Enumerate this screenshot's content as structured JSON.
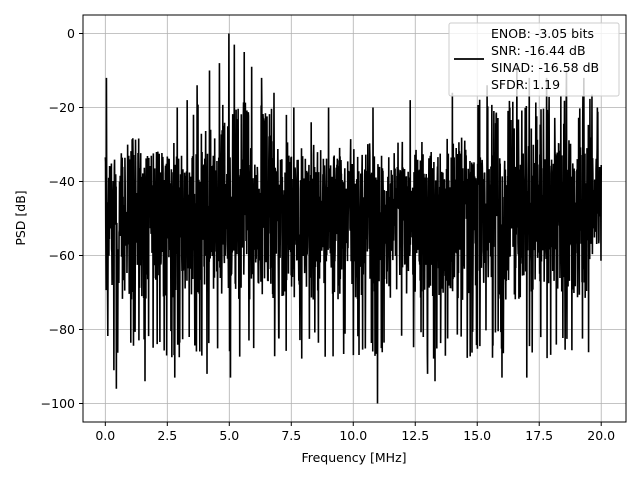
{
  "chart_data": {
    "type": "line",
    "title": "",
    "xlabel": "Frequency [MHz]",
    "ylabel": "PSD [dB]",
    "xlim": [
      -0.9,
      21.0
    ],
    "ylim": [
      -105,
      5
    ],
    "x_ticks": [
      0.0,
      2.5,
      5.0,
      7.5,
      10.0,
      12.5,
      15.0,
      17.5,
      20.0
    ],
    "x_tick_labels": [
      "0.0",
      "2.5",
      "5.0",
      "7.5",
      "10.0",
      "12.5",
      "15.0",
      "17.5",
      "20.0"
    ],
    "y_ticks": [
      0,
      -20,
      -40,
      -60,
      -80,
      -100
    ],
    "y_tick_labels": [
      "0",
      "−20",
      "−40",
      "−60",
      "−80",
      "−100"
    ],
    "grid": true,
    "legend_position": "top-right",
    "line_color": "#000000",
    "series": [
      {
        "legend_lines": [
          "ENOB: -3.05 bits",
          "SNR: -16.44 dB",
          "SINAD: -16.58 dB",
          "SFDR: 1.19"
        ],
        "x_range": [
          0.0,
          20.0
        ],
        "noise_floor_db": [
          -80,
          -40
        ],
        "dip_min_db": -100,
        "peaks": [
          {
            "x": 0.05,
            "y": -12
          },
          {
            "x": 4.98,
            "y": 0
          },
          {
            "x": 5.2,
            "y": -3
          },
          {
            "x": 5.6,
            "y": -5
          },
          {
            "x": 4.6,
            "y": -8
          },
          {
            "x": 5.9,
            "y": -9
          },
          {
            "x": 4.2,
            "y": -10
          },
          {
            "x": 6.3,
            "y": -12
          },
          {
            "x": 3.7,
            "y": -14
          },
          {
            "x": 3.3,
            "y": -18
          },
          {
            "x": 2.9,
            "y": -20
          },
          {
            "x": 6.8,
            "y": -16
          },
          {
            "x": 7.3,
            "y": -22
          },
          {
            "x": 7.6,
            "y": -20
          },
          {
            "x": 8.3,
            "y": -24
          },
          {
            "x": 9.0,
            "y": -20
          },
          {
            "x": 10.8,
            "y": -20
          },
          {
            "x": 12.3,
            "y": -18
          },
          {
            "x": 14.0,
            "y": -16
          },
          {
            "x": 15.4,
            "y": -14
          },
          {
            "x": 16.0,
            "y": -6
          },
          {
            "x": 16.6,
            "y": -8
          },
          {
            "x": 17.1,
            "y": -12
          },
          {
            "x": 17.8,
            "y": -12
          },
          {
            "x": 18.6,
            "y": -10
          },
          {
            "x": 19.3,
            "y": -12
          }
        ],
        "dips": [
          {
            "x": 0.35,
            "y": -91
          },
          {
            "x": 0.45,
            "y": -96
          },
          {
            "x": 1.6,
            "y": -94
          },
          {
            "x": 2.8,
            "y": -93
          },
          {
            "x": 4.1,
            "y": -92
          },
          {
            "x": 5.05,
            "y": -93
          },
          {
            "x": 10.98,
            "y": -100
          },
          {
            "x": 13.0,
            "y": -92
          },
          {
            "x": 13.3,
            "y": -94
          },
          {
            "x": 16.0,
            "y": -93
          },
          {
            "x": 17.0,
            "y": -93
          }
        ]
      }
    ]
  }
}
